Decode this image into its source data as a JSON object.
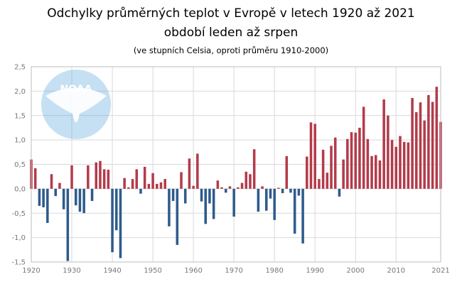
{
  "chart_data": {
    "type": "bar",
    "title": "Odchylky průměrných teplot v Evropě v letech 1920 až 2021",
    "subtitle": "období leden až srpen",
    "note": "(ve stupních Celsia, oproti průměru 1910-2000)",
    "logo_text": "NOAA",
    "x_tick_labels": [
      "1920",
      "1930",
      "1940",
      "1950",
      "1960",
      "1970",
      "1980",
      "1990",
      "2000",
      "2010",
      "2021"
    ],
    "y_tick_labels": [
      "2,5",
      "2,0",
      "1,5",
      "1,0",
      "0,5",
      "0,0",
      "-0,5",
      "-1,0",
      "-1,5"
    ],
    "ylim": [
      -1.5,
      2.5
    ],
    "grid": true,
    "colors": {
      "positive": "#b33b4b",
      "negative": "#2e5b8c",
      "grid": "#d9d9d9",
      "logo": "#5aa7d9"
    },
    "x": [
      1920,
      1921,
      1922,
      1923,
      1924,
      1925,
      1926,
      1927,
      1928,
      1929,
      1930,
      1931,
      1932,
      1933,
      1934,
      1935,
      1936,
      1937,
      1938,
      1939,
      1940,
      1941,
      1942,
      1943,
      1944,
      1945,
      1946,
      1947,
      1948,
      1949,
      1950,
      1951,
      1952,
      1953,
      1954,
      1955,
      1956,
      1957,
      1958,
      1959,
      1960,
      1961,
      1962,
      1963,
      1964,
      1965,
      1966,
      1967,
      1968,
      1969,
      1970,
      1971,
      1972,
      1973,
      1974,
      1975,
      1976,
      1977,
      1978,
      1979,
      1980,
      1981,
      1982,
      1983,
      1984,
      1985,
      1986,
      1987,
      1988,
      1989,
      1990,
      1991,
      1992,
      1993,
      1994,
      1995,
      1996,
      1997,
      1998,
      1999,
      2000,
      2001,
      2002,
      2003,
      2004,
      2005,
      2006,
      2007,
      2008,
      2009,
      2010,
      2011,
      2012,
      2013,
      2014,
      2015,
      2016,
      2017,
      2018,
      2019,
      2020,
      2021
    ],
    "values": [
      0.6,
      0.42,
      -0.35,
      -0.38,
      -0.7,
      0.3,
      -0.15,
      0.12,
      -0.42,
      -1.48,
      0.48,
      -0.34,
      -0.47,
      -0.5,
      0.48,
      -0.25,
      0.54,
      0.57,
      0.4,
      0.39,
      -1.3,
      -0.85,
      -1.42,
      0.22,
      0.03,
      0.2,
      0.4,
      -0.1,
      0.45,
      0.1,
      0.32,
      0.1,
      0.13,
      0.2,
      -0.77,
      -0.25,
      -1.15,
      0.34,
      -0.3,
      0.62,
      0.06,
      0.72,
      -0.26,
      -0.72,
      -0.3,
      -0.62,
      0.17,
      0.03,
      -0.08,
      0.05,
      -0.57,
      0.03,
      0.12,
      0.35,
      0.3,
      0.81,
      -0.47,
      0.05,
      -0.45,
      -0.2,
      -0.64,
      0.02,
      -0.09,
      0.67,
      -0.08,
      -0.92,
      -0.14,
      -1.12,
      0.66,
      1.36,
      1.33,
      0.2,
      0.8,
      0.33,
      0.88,
      1.05,
      -0.16,
      0.6,
      1.02,
      1.16,
      1.15,
      1.25,
      1.68,
      1.02,
      0.67,
      0.69,
      0.58,
      1.83,
      1.5,
      1.0,
      0.86,
      1.08,
      0.96,
      0.95,
      1.86,
      1.57,
      1.77,
      1.4,
      1.92,
      1.78,
      2.09,
      1.37
    ]
  }
}
